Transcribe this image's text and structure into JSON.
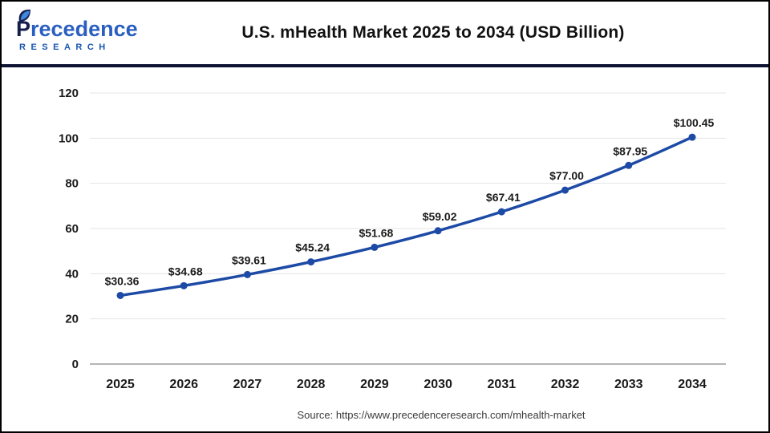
{
  "logo": {
    "initial": "P",
    "rest": "recedence",
    "sub": "RESEARCH",
    "initial_color": "#141f4d",
    "rest_color": "#2a5fc0",
    "leaf_dark": "#16204f",
    "leaf_light": "#3f86dd"
  },
  "header": {
    "title": "U.S. mHealth Market 2025 to 2034 (USD Billion)"
  },
  "chart_data": {
    "type": "line",
    "title": "U.S. mHealth Market 2025 to 2034 (USD Billion)",
    "categories": [
      "2025",
      "2026",
      "2027",
      "2028",
      "2029",
      "2030",
      "2031",
      "2032",
      "2033",
      "2034"
    ],
    "series": [
      {
        "name": "U.S. mHealth Market (USD Billion)",
        "values": [
          30.36,
          34.68,
          39.61,
          45.24,
          51.68,
          59.02,
          67.41,
          77.0,
          87.95,
          100.45
        ],
        "labels": [
          "$30.36",
          "$34.68",
          "$39.61",
          "$45.24",
          "$51.68",
          "$59.02",
          "$67.41",
          "$77.00",
          "$87.95",
          "$100.45"
        ]
      }
    ],
    "ylim": [
      0,
      120
    ],
    "yticks": [
      0,
      20,
      40,
      60,
      80,
      100,
      120
    ],
    "grid": true,
    "legend": "none",
    "line_color": "#1c4aa5",
    "grid_color": "#e4e4e4",
    "axis_color": "#b5b5b5",
    "tick_color": "#1a1a1a"
  },
  "footer": {
    "source": "Source: https://www.precedenceresearch.com/mhealth-market"
  },
  "colors": {
    "divider": "#0d1432",
    "background": "#ffffff",
    "title": "#111111",
    "source_text": "#3a3a3a"
  }
}
